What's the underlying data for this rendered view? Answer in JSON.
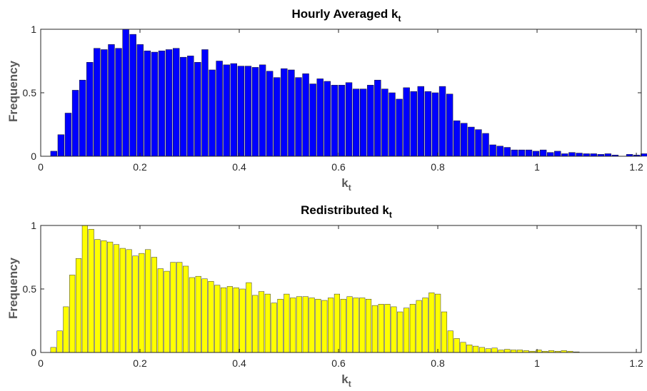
{
  "chart_data": [
    {
      "type": "bar",
      "title_main": "Hourly Averaged k",
      "title_sub": "t",
      "xlabel_main": "k",
      "xlabel_sub": "t",
      "ylabel": "Frequency",
      "xlim": [
        0,
        1.21
      ],
      "ylim": [
        0,
        1
      ],
      "xticks": [
        0,
        0.2,
        0.4,
        0.6,
        0.8,
        1,
        1.2
      ],
      "xtick_labels": [
        "0",
        "0.2",
        "0.4",
        "0.6",
        "0.8",
        "1",
        "1.2"
      ],
      "yticks": [
        0,
        0.5,
        1
      ],
      "ytick_labels": [
        "0",
        "0.5",
        "1"
      ],
      "bin_start": 0.02,
      "bin_width": 0.0145,
      "bar_color": "#0000ff",
      "edge_color": "#1a1a1a",
      "grid": false,
      "values": [
        0.04,
        0.17,
        0.34,
        0.52,
        0.6,
        0.74,
        0.85,
        0.84,
        0.88,
        0.85,
        1.0,
        0.96,
        0.88,
        0.83,
        0.82,
        0.83,
        0.84,
        0.85,
        0.78,
        0.79,
        0.74,
        0.84,
        0.68,
        0.75,
        0.72,
        0.73,
        0.71,
        0.71,
        0.7,
        0.72,
        0.67,
        0.62,
        0.69,
        0.68,
        0.62,
        0.65,
        0.57,
        0.61,
        0.59,
        0.56,
        0.56,
        0.58,
        0.53,
        0.53,
        0.56,
        0.6,
        0.53,
        0.5,
        0.45,
        0.54,
        0.51,
        0.55,
        0.51,
        0.5,
        0.55,
        0.49,
        0.28,
        0.26,
        0.23,
        0.21,
        0.18,
        0.09,
        0.08,
        0.07,
        0.05,
        0.05,
        0.05,
        0.04,
        0.05,
        0.03,
        0.04,
        0.02,
        0.03,
        0.025,
        0.02,
        0.02,
        0.015,
        0.02,
        0.01,
        0.0,
        0.015,
        0.01,
        0.02,
        0.015,
        0.01,
        0.0
      ]
    },
    {
      "type": "bar",
      "title_main": "Redistributed k",
      "title_sub": "t",
      "xlabel_main": "k",
      "xlabel_sub": "t",
      "ylabel": "Frequency",
      "xlim": [
        0,
        1.21
      ],
      "ylim": [
        0,
        1
      ],
      "xticks": [
        0,
        0.2,
        0.4,
        0.6,
        0.8,
        1,
        1.2
      ],
      "xtick_labels": [
        "0",
        "0.2",
        "0.4",
        "0.6",
        "0.8",
        "1",
        "1.2"
      ],
      "yticks": [
        0,
        0.5,
        1
      ],
      "ytick_labels": [
        "0",
        "0.5",
        "1"
      ],
      "bin_start": 0.02,
      "bin_width": 0.0127,
      "bar_color": "#ffff00",
      "edge_color": "#333333",
      "grid": false,
      "values": [
        0.04,
        0.17,
        0.36,
        0.61,
        0.74,
        1.0,
        0.97,
        0.89,
        0.88,
        0.87,
        0.85,
        0.82,
        0.81,
        0.76,
        0.78,
        0.81,
        0.75,
        0.66,
        0.64,
        0.71,
        0.71,
        0.68,
        0.59,
        0.6,
        0.58,
        0.56,
        0.53,
        0.51,
        0.52,
        0.51,
        0.5,
        0.55,
        0.45,
        0.48,
        0.46,
        0.39,
        0.42,
        0.46,
        0.43,
        0.44,
        0.44,
        0.43,
        0.42,
        0.41,
        0.43,
        0.46,
        0.42,
        0.44,
        0.43,
        0.43,
        0.42,
        0.37,
        0.38,
        0.38,
        0.36,
        0.32,
        0.35,
        0.38,
        0.41,
        0.43,
        0.47,
        0.46,
        0.32,
        0.17,
        0.11,
        0.08,
        0.06,
        0.05,
        0.04,
        0.03,
        0.035,
        0.02,
        0.025,
        0.02,
        0.02,
        0.015,
        0.01,
        0.02,
        0.01,
        0.015,
        0.01,
        0.015,
        0.01,
        0.005
      ]
    }
  ]
}
